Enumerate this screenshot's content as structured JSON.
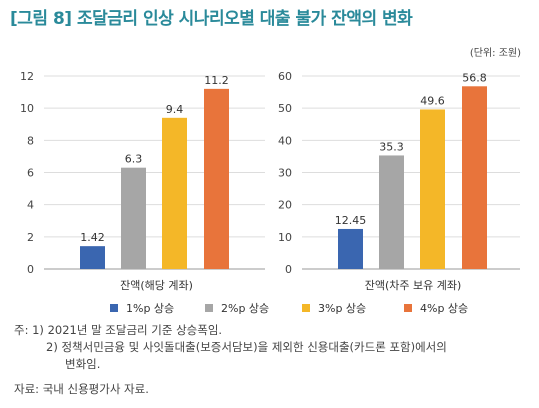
{
  "title": "[그림 8] 조달금리 인상 시나리오별 대출 불가 잔액의 변화",
  "unit": "(단위: 조원)",
  "colors": [
    "#3a66b0",
    "#a6a6a6",
    "#f4b728",
    "#e8743b"
  ],
  "chart_data": [
    {
      "type": "bar",
      "xlabel": "잔액(해당 계좌)",
      "ylim": [
        0,
        12
      ],
      "yticks": [
        "0",
        "2",
        "4",
        "6",
        "8",
        "10",
        "12"
      ],
      "grid": true,
      "series": [
        {
          "name": "1%p 상승",
          "values": [
            1.42
          ],
          "label": "1.42"
        },
        {
          "name": "2%p 상승",
          "values": [
            6.3
          ],
          "label": "6.3"
        },
        {
          "name": "3%p 상승",
          "values": [
            9.4
          ],
          "label": "9.4"
        },
        {
          "name": "4%p 상승",
          "values": [
            11.2
          ],
          "label": "11.2"
        }
      ]
    },
    {
      "type": "bar",
      "xlabel": "잔액(차주 보유 계좌)",
      "ylim": [
        0,
        60
      ],
      "yticks": [
        "0",
        "10",
        "20",
        "30",
        "40",
        "50",
        "60"
      ],
      "grid": true,
      "series": [
        {
          "name": "1%p 상승",
          "values": [
            12.45
          ],
          "label": "12.45"
        },
        {
          "name": "2%p 상승",
          "values": [
            35.3
          ],
          "label": "35.3"
        },
        {
          "name": "3%p 상승",
          "values": [
            49.6
          ],
          "label": "49.6"
        },
        {
          "name": "4%p 상승",
          "values": [
            56.8
          ],
          "label": "56.8"
        }
      ]
    }
  ],
  "legend": [
    "1%p 상승",
    "2%p 상승",
    "3%p 상승",
    "4%p 상승"
  ],
  "notes": {
    "line1": "주: 1) 2021년 말 조달금리 기준 상승폭임.",
    "line2": "2) 정책서민금융 및 사잇돌대출(보증서담보)을 제외한 신용대출(카드론 포함)에서의",
    "line3": "변화임."
  },
  "source": "자료: 국내 신용평가사 자료."
}
